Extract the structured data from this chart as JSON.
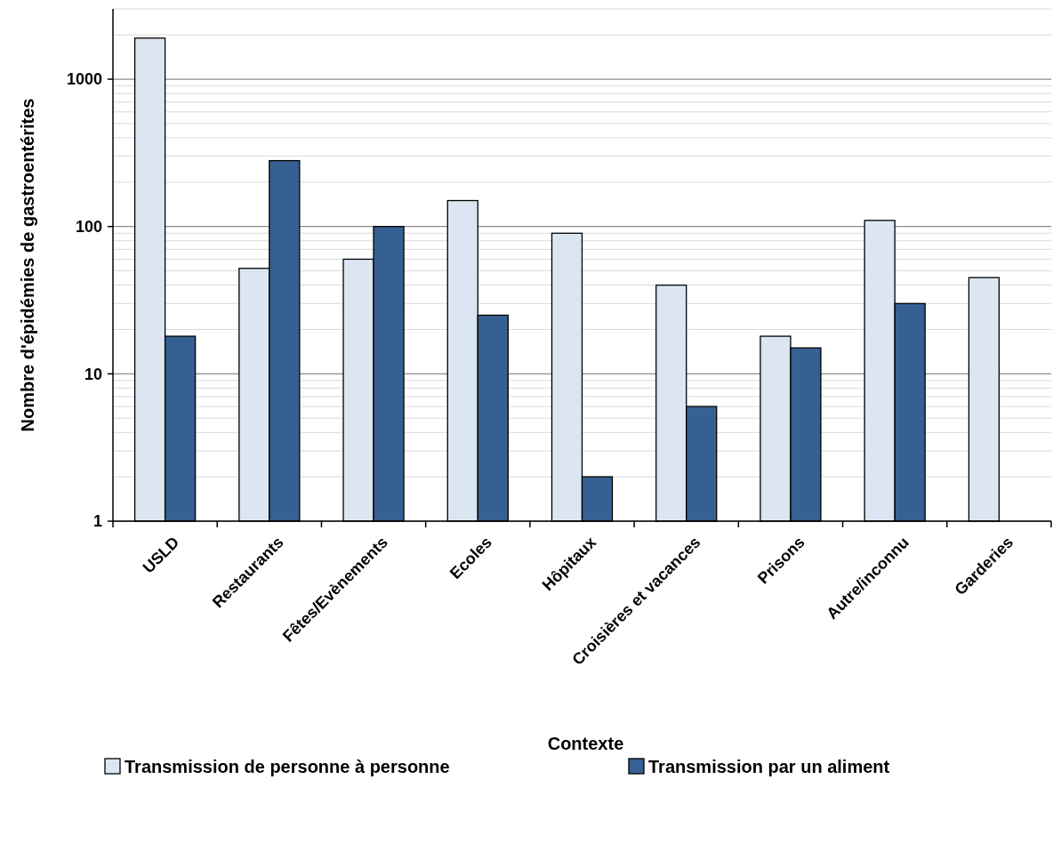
{
  "chart_data": {
    "type": "bar",
    "xlabel": "Contexte",
    "ylabel": "Nombre d'épidémies de gastroentérites",
    "categories": [
      "USLD",
      "Restaurants",
      "Fêtes/Evènements",
      "Ecoles",
      "Hôpitaux",
      "Croisières et vacances",
      "Prisons",
      "Autre/inconnu",
      "Garderies"
    ],
    "series": [
      {
        "name": "Transmission de personne à personne",
        "color": "#dce6f2",
        "values": [
          1900,
          52,
          60,
          150,
          90,
          40,
          18,
          110,
          45
        ]
      },
      {
        "name": "Transmission par un aliment",
        "color": "#376092",
        "values": [
          18,
          280,
          100,
          25,
          2,
          6,
          15,
          30,
          null
        ]
      }
    ],
    "log": true,
    "ylim": [
      1,
      3000
    ],
    "yticks": [
      1,
      10,
      100,
      1000
    ],
    "grid": "y",
    "legend": "bottom"
  }
}
